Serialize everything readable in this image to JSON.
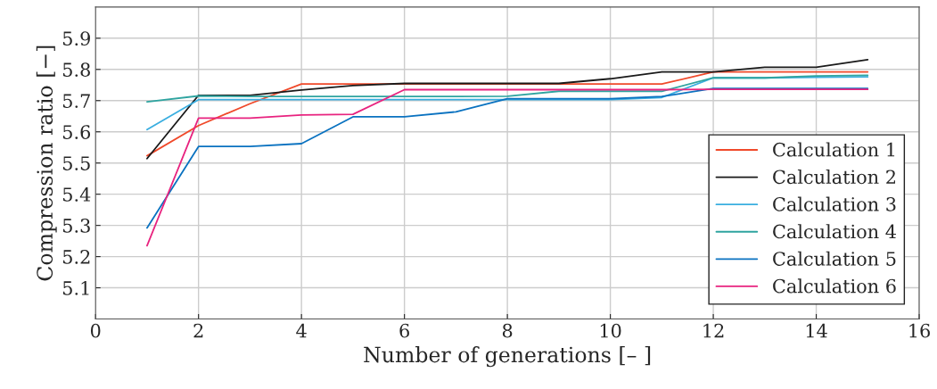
{
  "chart_data": {
    "type": "line",
    "xlabel": "Number of generations [– ]",
    "ylabel": "Compression ratio [−]",
    "x": [
      1,
      2,
      3,
      4,
      5,
      6,
      7,
      8,
      9,
      10,
      11,
      12,
      13,
      14,
      15
    ],
    "series": [
      {
        "name": "Calculation 1",
        "color": "#f0492a",
        "values": [
          5.523,
          5.62,
          5.69,
          5.753,
          5.753,
          5.753,
          5.753,
          5.753,
          5.753,
          5.753,
          5.753,
          5.792,
          5.792,
          5.792,
          5.792
        ]
      },
      {
        "name": "Calculation 2",
        "color": "#1a1a1a",
        "values": [
          5.514,
          5.717,
          5.717,
          5.734,
          5.748,
          5.755,
          5.755,
          5.755,
          5.755,
          5.77,
          5.792,
          5.792,
          5.807,
          5.807,
          5.831
        ]
      },
      {
        "name": "Calculation 3",
        "color": "#3aaee0",
        "values": [
          5.607,
          5.703,
          5.703,
          5.703,
          5.703,
          5.703,
          5.703,
          5.703,
          5.703,
          5.703,
          5.71,
          5.773,
          5.773,
          5.775,
          5.776
        ]
      },
      {
        "name": "Calculation 4",
        "color": "#2fa4a0",
        "values": [
          5.696,
          5.715,
          5.713,
          5.713,
          5.713,
          5.713,
          5.713,
          5.714,
          5.73,
          5.73,
          5.73,
          5.773,
          5.773,
          5.779,
          5.781
        ]
      },
      {
        "name": "Calculation 5",
        "color": "#0a72c0",
        "values": [
          5.292,
          5.553,
          5.553,
          5.562,
          5.648,
          5.648,
          5.664,
          5.706,
          5.706,
          5.706,
          5.713,
          5.739,
          5.739,
          5.739,
          5.739
        ]
      },
      {
        "name": "Calculation 6",
        "color": "#e8237f",
        "values": [
          5.235,
          5.644,
          5.644,
          5.654,
          5.656,
          5.735,
          5.735,
          5.735,
          5.735,
          5.735,
          5.735,
          5.736,
          5.736,
          5.736,
          5.736
        ]
      }
    ],
    "xlim": [
      0,
      16
    ],
    "xticks": [
      0,
      2,
      4,
      6,
      8,
      10,
      12,
      14,
      16
    ],
    "ylim": [
      5.0,
      6.0
    ],
    "yticks": [
      5.1,
      5.2,
      5.3,
      5.4,
      5.5,
      5.6,
      5.7,
      5.8,
      5.9
    ],
    "grid": true,
    "legend": "lower right",
    "marker": "none",
    "line_style": "solid"
  }
}
